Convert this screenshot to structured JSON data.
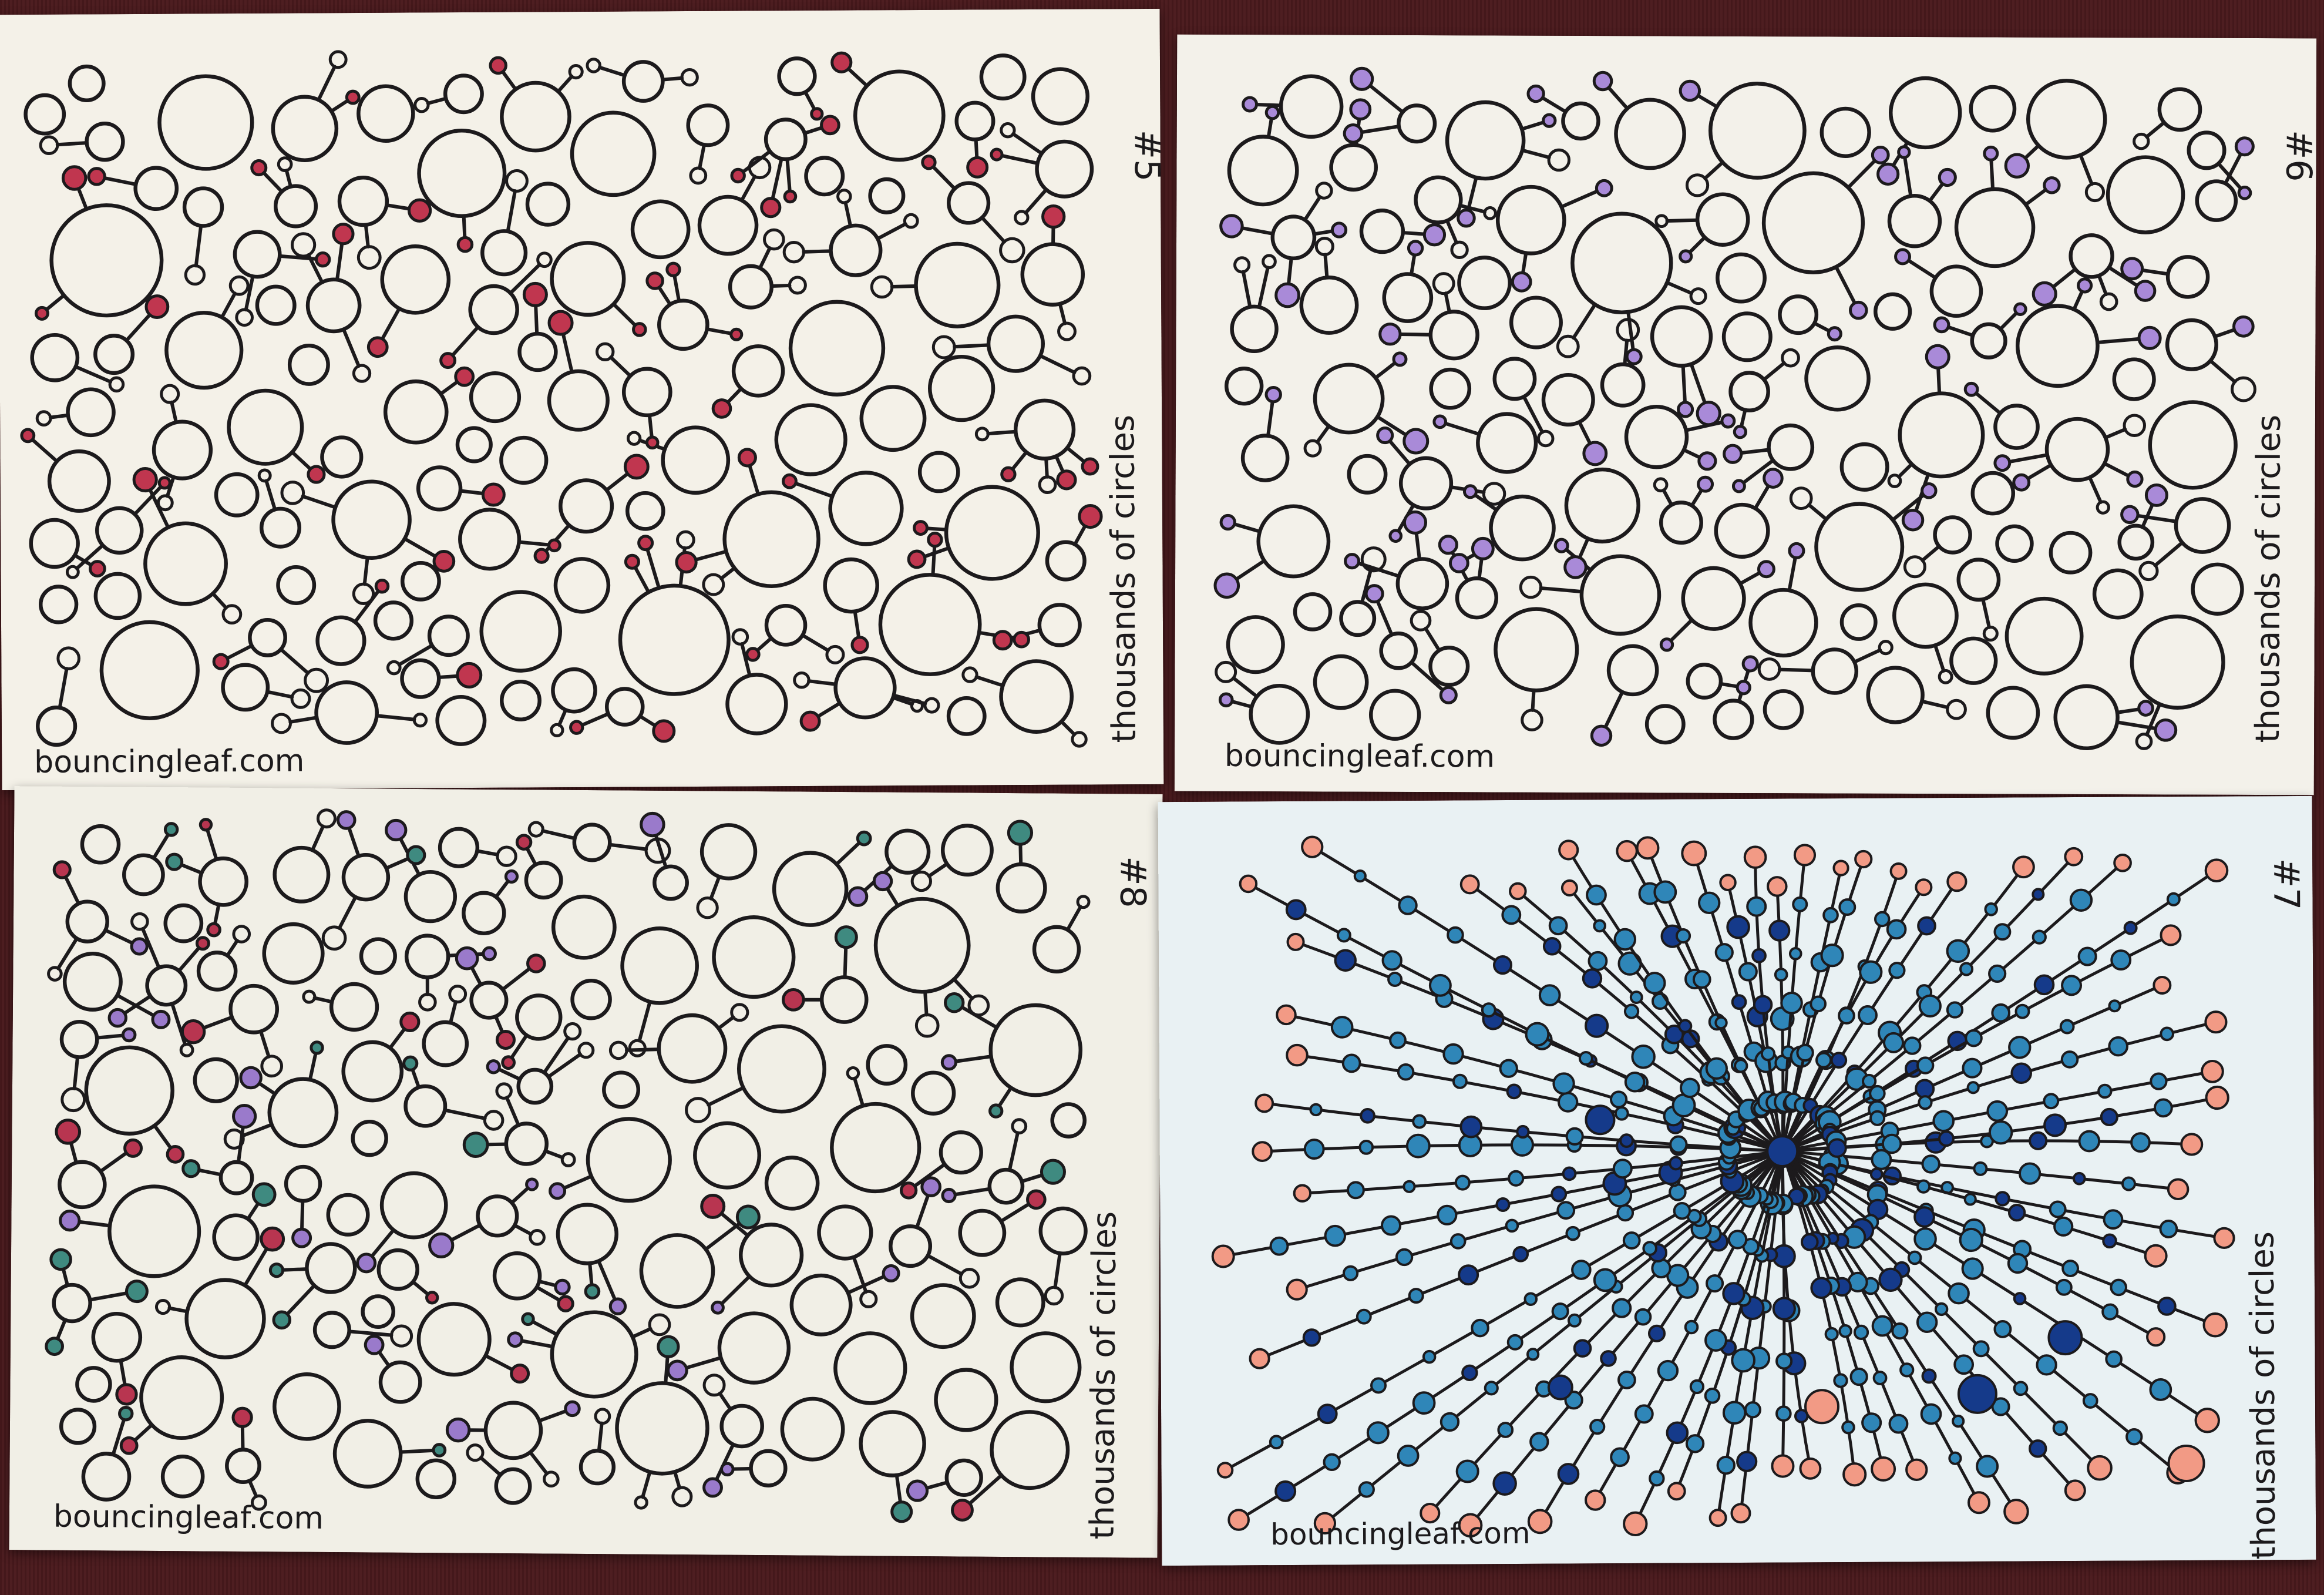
{
  "cards": [
    {
      "key": "c5",
      "number": "#5",
      "side_text": "thousands of circles",
      "signature": "bouncingleaf.com",
      "paper": "#f4f1e8",
      "palette": [
        "#c0364f"
      ]
    },
    {
      "key": "c6",
      "number": "#6",
      "side_text": "thousands of circles",
      "signature": "bouncingleaf.com",
      "paper": "#f3f1ea",
      "palette": [
        "#a98ad8"
      ]
    },
    {
      "key": "c8",
      "number": "#8",
      "side_text": "thousands of circles",
      "signature": "bouncingleaf.com",
      "paper": "#f1efe6",
      "palette": [
        "#b83550",
        "#9a7acb",
        "#3f8a80"
      ]
    },
    {
      "key": "c7",
      "number": "#7",
      "side_text": "thousands of circles",
      "signature": "bouncingleaf.com",
      "paper": "#e9f1f3",
      "palette": [
        "#153a8a",
        "#2f86b8",
        "#f29a85"
      ]
    }
  ],
  "colors": {
    "ink": "#1c1a1c",
    "tablecloth": "#4a1a1d"
  }
}
